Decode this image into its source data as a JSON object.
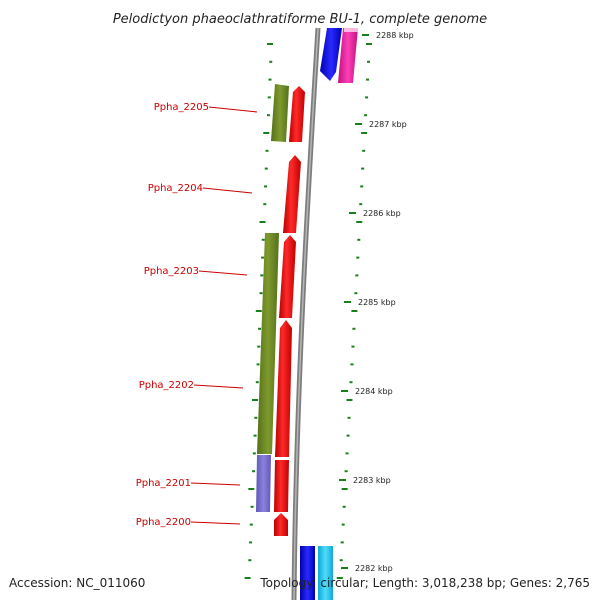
{
  "title": "Pelodictyon phaeoclathratiforme BU-1, complete genome",
  "accession": "Accession: NC_011060",
  "topology": "Topology: circular; Length: 3,018,238 bp; Genes: 2,765",
  "colors": {
    "backbone": "#8a8a8a",
    "tick": "#1a7f1a",
    "label": "#cc0000",
    "cds_forward": "#ee0000",
    "cds_olive": "#6e8a22",
    "cds_purple": "#7b72cc",
    "cds_blue": "#1010ee",
    "cds_magenta": "#ee1fa0",
    "cds_cyan": "#1fc6ee"
  },
  "scale": {
    "unit": "kbp",
    "labels": [
      "2288 kbp",
      "2287 kbp",
      "2286 kbp",
      "2285 kbp",
      "2284 kbp",
      "2283 kbp",
      "2282 kbp"
    ]
  },
  "genes": [
    {
      "name": "Ppha_2205"
    },
    {
      "name": "Ppha_2204"
    },
    {
      "name": "Ppha_2203"
    },
    {
      "name": "Ppha_2202"
    },
    {
      "name": "Ppha_2201"
    },
    {
      "name": "Ppha_2200"
    }
  ]
}
